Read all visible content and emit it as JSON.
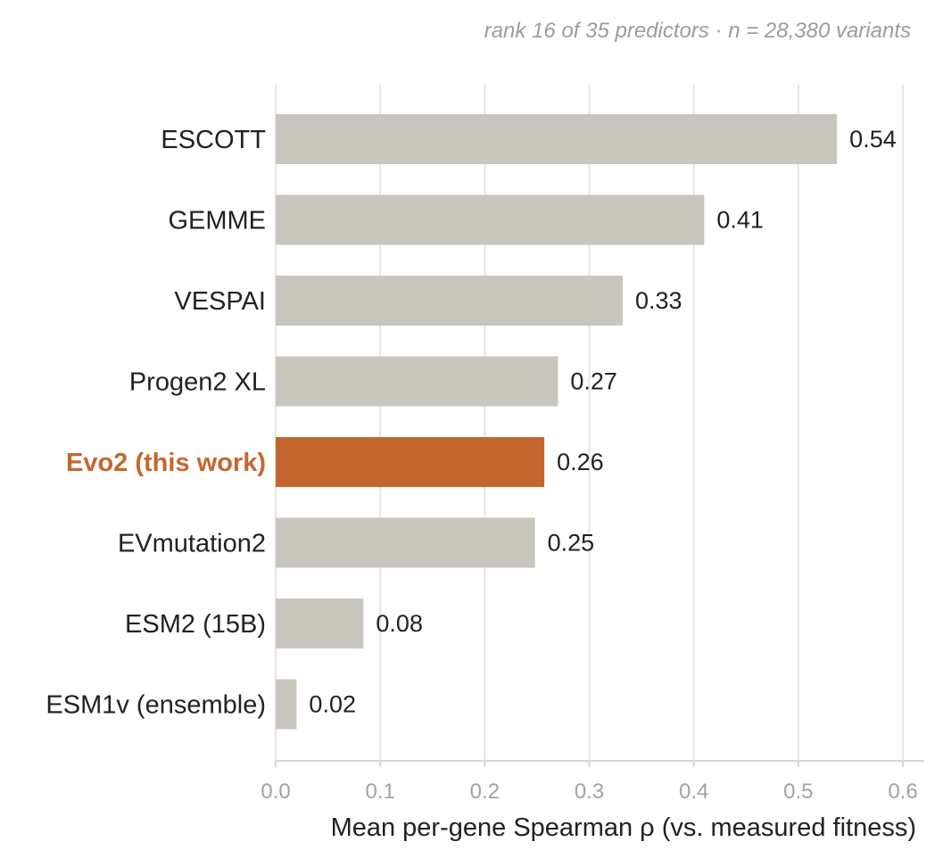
{
  "chart_data": {
    "type": "bar",
    "orientation": "horizontal",
    "subtitle": "rank 16 of 35 predictors · n = 28,380 variants",
    "xlabel": "Mean per-gene Spearman ρ  (vs. measured fitness)",
    "ylabel": "",
    "xlim": [
      0,
      0.6
    ],
    "xticks": [
      0.0,
      0.1,
      0.2,
      0.3,
      0.4,
      0.5,
      0.6
    ],
    "xtick_labels": [
      "0.0",
      "0.1",
      "0.2",
      "0.3",
      "0.4",
      "0.5",
      "0.6"
    ],
    "grid": "vertical",
    "categories": [
      "ESCOTT",
      "GEMME",
      "VESPAI",
      "Progen2 XL",
      "Evo2 (this work)",
      "EVmutation2",
      "ESM2 (15B)",
      "ESM1v (ensemble)"
    ],
    "values": [
      0.537,
      0.41,
      0.332,
      0.27,
      0.257,
      0.248,
      0.084,
      0.02
    ],
    "value_labels": [
      "0.54",
      "0.41",
      "0.33",
      "0.27",
      "0.26",
      "0.25",
      "0.08",
      "0.02"
    ],
    "highlight": "Evo2 (this work)",
    "colors": {
      "bar": "#c9c6bd",
      "highlight": "#c4672f",
      "grid": "#e8e6dd",
      "text": "#222222",
      "muted": "#9c9c9c"
    }
  }
}
